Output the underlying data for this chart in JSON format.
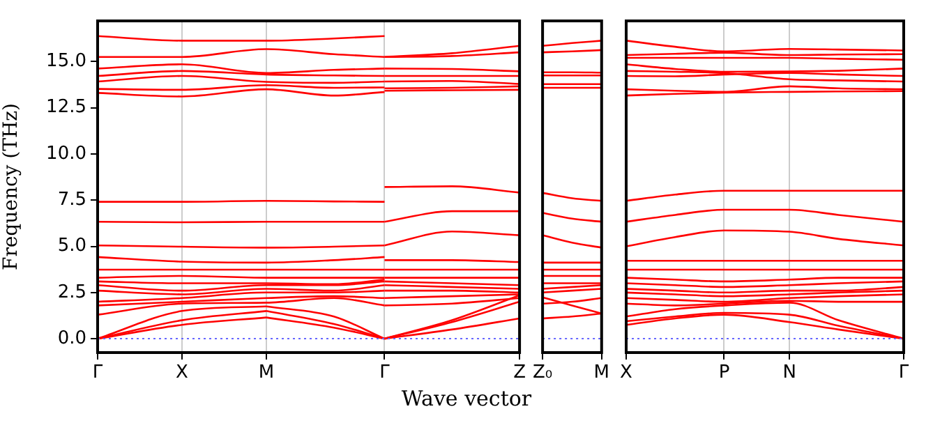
{
  "chart_data": [
    {
      "type": "line",
      "ylabel": "Frequency (THz)",
      "color": "#ff0000",
      "marker": "none",
      "line_style": "solid",
      "legend": false,
      "grid": "x",
      "categories": [
        "Γ",
        null,
        null,
        null,
        null,
        "X",
        null,
        null,
        null,
        null,
        "M",
        null,
        null,
        null,
        null,
        null,
        null,
        "Γ",
        null,
        null,
        null,
        null,
        null,
        null,
        null,
        "Z"
      ],
      "ylim": [
        -0.75,
        17.2
      ],
      "yticks": [
        {
          "value": 0,
          "label": "0.0"
        },
        {
          "value": 2.5,
          "label": "2.5"
        },
        {
          "value": 5,
          "label": "5.0"
        },
        {
          "value": 7.5,
          "label": "7.5"
        },
        {
          "value": 10,
          "label": "10.0"
        },
        {
          "value": 12.5,
          "label": "12.5"
        },
        {
          "value": 15,
          "label": "15.0"
        }
      ],
      "ref_lines": [
        {
          "axis": "y",
          "value": 0,
          "color": "#6666ff",
          "line_style": "dotted"
        }
      ],
      "series": [
        {
          "values": [
            16.38,
            null,
            null,
            null,
            null,
            16.13,
            null,
            null,
            null,
            null,
            16.13,
            null,
            null,
            null,
            16.25,
            null,
            null,
            16.38,
            null,
            null,
            null,
            null,
            null,
            null,
            null,
            null
          ]
        },
        {
          "values": [
            15.25,
            null,
            null,
            null,
            null,
            15.25,
            null,
            null,
            null,
            null,
            15.67,
            null,
            null,
            null,
            15.4,
            null,
            null,
            15.25,
            null,
            null,
            null,
            null,
            null,
            null,
            null,
            null
          ]
        },
        {
          "values": [
            14.62,
            null,
            null,
            null,
            null,
            14.85,
            null,
            null,
            null,
            null,
            14.38,
            null,
            null,
            null,
            14.55,
            null,
            null,
            14.62,
            null,
            null,
            null,
            null,
            null,
            null,
            null,
            null
          ]
        },
        {
          "values": [
            14.22,
            null,
            null,
            null,
            null,
            14.49,
            null,
            null,
            null,
            null,
            14.3,
            null,
            null,
            null,
            14.25,
            null,
            null,
            14.22,
            null,
            null,
            null,
            null,
            null,
            null,
            null,
            null
          ]
        },
        {
          "values": [
            13.92,
            null,
            null,
            null,
            null,
            14.22,
            null,
            null,
            null,
            null,
            13.9,
            null,
            null,
            null,
            13.85,
            null,
            null,
            13.92,
            null,
            null,
            null,
            null,
            null,
            null,
            null,
            null
          ]
        },
        {
          "values": [
            13.52,
            null,
            null,
            null,
            null,
            13.47,
            null,
            null,
            null,
            null,
            13.72,
            null,
            null,
            null,
            13.58,
            null,
            null,
            13.6,
            null,
            null,
            null,
            null,
            null,
            null,
            null,
            null
          ]
        },
        {
          "values": [
            13.3,
            null,
            null,
            null,
            null,
            13.11,
            null,
            null,
            null,
            null,
            13.5,
            null,
            null,
            null,
            13.16,
            null,
            null,
            13.35,
            null,
            null,
            null,
            null,
            null,
            null,
            null,
            null
          ]
        },
        {
          "values": [
            7.41,
            null,
            null,
            null,
            null,
            7.41,
            null,
            null,
            null,
            null,
            7.46,
            null,
            null,
            null,
            7.43,
            null,
            null,
            7.41,
            null,
            null,
            null,
            null,
            null,
            null,
            null,
            null
          ]
        },
        {
          "values": [
            6.33,
            null,
            null,
            null,
            null,
            6.3,
            null,
            null,
            null,
            null,
            6.33,
            null,
            null,
            null,
            6.33,
            null,
            null,
            6.33,
            null,
            null,
            null,
            null,
            null,
            null,
            null,
            null
          ]
        },
        {
          "values": [
            5.05,
            null,
            null,
            null,
            null,
            4.98,
            null,
            null,
            null,
            null,
            4.93,
            null,
            null,
            null,
            4.98,
            null,
            null,
            5.05,
            null,
            null,
            null,
            null,
            null,
            null,
            null,
            null
          ]
        },
        {
          "values": [
            4.42,
            null,
            null,
            null,
            null,
            4.17,
            null,
            null,
            null,
            null,
            4.12,
            null,
            null,
            null,
            4.25,
            null,
            null,
            4.42,
            null,
            null,
            null,
            null,
            null,
            null,
            null,
            null
          ]
        },
        {
          "values": [
            3.74,
            null,
            null,
            null,
            null,
            3.74,
            null,
            null,
            null,
            null,
            3.74,
            null,
            null,
            null,
            3.74,
            null,
            null,
            3.74,
            null,
            null,
            null,
            null,
            null,
            null,
            null,
            null
          ]
        },
        {
          "values": [
            3.3,
            null,
            null,
            null,
            null,
            3.4,
            null,
            null,
            null,
            null,
            3.3,
            null,
            null,
            null,
            3.3,
            null,
            null,
            3.3,
            null,
            null,
            null,
            null,
            null,
            null,
            null,
            null
          ]
        },
        {
          "values": [
            3.1,
            null,
            null,
            null,
            null,
            3.0,
            null,
            null,
            null,
            null,
            3.0,
            null,
            null,
            null,
            2.95,
            null,
            null,
            3.2,
            null,
            null,
            null,
            null,
            null,
            null,
            null,
            null
          ]
        },
        {
          "values": [
            2.9,
            null,
            null,
            null,
            null,
            2.6,
            null,
            null,
            null,
            null,
            2.9,
            null,
            null,
            null,
            2.9,
            null,
            null,
            3.1,
            null,
            null,
            null,
            null,
            null,
            null,
            null,
            null
          ]
        },
        {
          "values": [
            2.6,
            null,
            null,
            null,
            null,
            2.4,
            null,
            null,
            null,
            null,
            2.7,
            null,
            null,
            null,
            2.6,
            null,
            null,
            2.9,
            null,
            null,
            null,
            null,
            null,
            null,
            null,
            null
          ]
        },
        {
          "values": [
            2.0,
            null,
            null,
            null,
            null,
            2.2,
            null,
            null,
            null,
            null,
            2.5,
            null,
            null,
            null,
            2.5,
            null,
            null,
            2.6,
            null,
            null,
            null,
            null,
            null,
            null,
            null,
            null
          ]
        },
        {
          "values": [
            1.8,
            null,
            null,
            null,
            null,
            2.0,
            null,
            null,
            null,
            null,
            2.2,
            null,
            null,
            null,
            2.3,
            null,
            null,
            2.2,
            null,
            null,
            null,
            null,
            null,
            null,
            null,
            null
          ]
        },
        {
          "values": [
            1.3,
            null,
            null,
            null,
            null,
            1.9,
            null,
            null,
            null,
            null,
            1.95,
            null,
            null,
            null,
            2.2,
            null,
            null,
            1.8,
            null,
            null,
            null,
            null,
            null,
            null,
            null,
            null
          ]
        },
        {
          "values": [
            0,
            null,
            null,
            null,
            null,
            1.5,
            null,
            null,
            null,
            null,
            1.75,
            null,
            null,
            null,
            null,
            null,
            null,
            null,
            null,
            null,
            null,
            null,
            null,
            null,
            null,
            null
          ]
        },
        {
          "values": [
            null,
            null,
            null,
            null,
            null,
            null,
            null,
            null,
            null,
            null,
            1.75,
            null,
            null,
            null,
            1.2,
            null,
            null,
            0,
            null,
            null,
            null,
            null,
            null,
            null,
            null,
            null
          ]
        },
        {
          "values": [
            0,
            null,
            null,
            null,
            null,
            1.0,
            null,
            null,
            null,
            null,
            1.5,
            null,
            null,
            null,
            null,
            null,
            null,
            null,
            null,
            null,
            null,
            null,
            null,
            null,
            null,
            null
          ]
        },
        {
          "values": [
            null,
            null,
            null,
            null,
            null,
            null,
            null,
            null,
            null,
            null,
            1.5,
            null,
            null,
            null,
            0.8,
            null,
            null,
            0,
            null,
            null,
            null,
            null,
            null,
            null,
            null,
            null
          ]
        },
        {
          "values": [
            0,
            null,
            null,
            null,
            null,
            0.75,
            null,
            null,
            null,
            null,
            1.15,
            null,
            null,
            null,
            null,
            null,
            null,
            null,
            null,
            null,
            null,
            null,
            null,
            null,
            null,
            null
          ]
        },
        {
          "values": [
            null,
            null,
            null,
            null,
            null,
            null,
            null,
            null,
            null,
            null,
            1.15,
            null,
            null,
            null,
            0.6,
            null,
            null,
            0,
            null,
            null,
            null,
            null,
            null,
            null,
            null,
            null
          ]
        },
        {
          "values": [
            null,
            null,
            null,
            null,
            null,
            null,
            null,
            null,
            null,
            null,
            null,
            null,
            null,
            null,
            null,
            null,
            null,
            15.25,
            null,
            null,
            null,
            15.45,
            null,
            null,
            null,
            15.85
          ]
        },
        {
          "values": [
            null,
            null,
            null,
            null,
            null,
            null,
            null,
            null,
            null,
            null,
            null,
            null,
            null,
            null,
            null,
            null,
            null,
            15.25,
            null,
            null,
            null,
            15.3,
            null,
            null,
            null,
            15.5
          ]
        },
        {
          "values": [
            null,
            null,
            null,
            null,
            null,
            null,
            null,
            null,
            null,
            null,
            null,
            null,
            null,
            null,
            null,
            null,
            null,
            14.62,
            null,
            null,
            null,
            14.6,
            null,
            null,
            null,
            14.47
          ]
        },
        {
          "values": [
            null,
            null,
            null,
            null,
            null,
            null,
            null,
            null,
            null,
            null,
            null,
            null,
            null,
            null,
            null,
            null,
            null,
            14.22,
            null,
            null,
            null,
            14.22,
            null,
            null,
            null,
            14.22
          ]
        },
        {
          "values": [
            null,
            null,
            null,
            null,
            null,
            null,
            null,
            null,
            null,
            null,
            null,
            null,
            null,
            null,
            null,
            null,
            null,
            13.92,
            null,
            null,
            null,
            13.95,
            null,
            null,
            null,
            13.79
          ]
        },
        {
          "values": [
            null,
            null,
            null,
            null,
            null,
            null,
            null,
            null,
            null,
            null,
            null,
            null,
            null,
            null,
            null,
            null,
            null,
            13.55,
            null,
            null,
            null,
            13.58,
            null,
            null,
            null,
            13.66
          ]
        },
        {
          "values": [
            null,
            null,
            null,
            null,
            null,
            null,
            null,
            null,
            null,
            null,
            null,
            null,
            null,
            null,
            null,
            null,
            null,
            13.42,
            null,
            null,
            null,
            13.45,
            null,
            null,
            null,
            13.47
          ]
        },
        {
          "values": [
            null,
            null,
            null,
            null,
            null,
            null,
            null,
            null,
            null,
            null,
            null,
            null,
            null,
            null,
            null,
            null,
            null,
            8.21,
            null,
            null,
            null,
            8.25,
            null,
            null,
            null,
            7.91
          ]
        },
        {
          "values": [
            null,
            null,
            null,
            null,
            null,
            null,
            null,
            null,
            null,
            null,
            null,
            null,
            null,
            null,
            null,
            null,
            null,
            6.33,
            null,
            null,
            null,
            6.9,
            null,
            null,
            null,
            6.9
          ]
        },
        {
          "values": [
            null,
            null,
            null,
            null,
            null,
            null,
            null,
            null,
            null,
            null,
            null,
            null,
            null,
            null,
            null,
            null,
            null,
            5.05,
            null,
            null,
            null,
            5.8,
            null,
            null,
            null,
            5.6
          ]
        },
        {
          "values": [
            null,
            null,
            null,
            null,
            null,
            null,
            null,
            null,
            null,
            null,
            null,
            null,
            null,
            null,
            null,
            null,
            null,
            4.25,
            null,
            null,
            null,
            4.25,
            null,
            null,
            null,
            4.15
          ]
        },
        {
          "values": [
            null,
            null,
            null,
            null,
            null,
            null,
            null,
            null,
            null,
            null,
            null,
            null,
            null,
            null,
            null,
            null,
            null,
            3.74,
            null,
            null,
            null,
            3.74,
            null,
            null,
            null,
            3.74
          ]
        },
        {
          "values": [
            null,
            null,
            null,
            null,
            null,
            null,
            null,
            null,
            null,
            null,
            null,
            null,
            null,
            null,
            null,
            null,
            null,
            3.3,
            null,
            null,
            null,
            3.3,
            null,
            null,
            null,
            3.3
          ]
        },
        {
          "values": [
            null,
            null,
            null,
            null,
            null,
            null,
            null,
            null,
            null,
            null,
            null,
            null,
            null,
            null,
            null,
            null,
            null,
            3.1,
            null,
            null,
            null,
            3.0,
            null,
            null,
            null,
            2.9
          ]
        },
        {
          "values": [
            null,
            null,
            null,
            null,
            null,
            null,
            null,
            null,
            null,
            null,
            null,
            null,
            null,
            null,
            null,
            null,
            null,
            2.9,
            null,
            null,
            null,
            2.8,
            null,
            null,
            null,
            2.7
          ]
        },
        {
          "values": [
            null,
            null,
            null,
            null,
            null,
            null,
            null,
            null,
            null,
            null,
            null,
            null,
            null,
            null,
            null,
            null,
            null,
            2.6,
            null,
            null,
            null,
            2.6,
            null,
            null,
            null,
            2.5
          ]
        },
        {
          "values": [
            null,
            null,
            null,
            null,
            null,
            null,
            null,
            null,
            null,
            null,
            null,
            null,
            null,
            null,
            null,
            null,
            null,
            2.2,
            null,
            null,
            null,
            2.3,
            null,
            null,
            null,
            2.4
          ]
        },
        {
          "values": [
            null,
            null,
            null,
            null,
            null,
            null,
            null,
            null,
            null,
            null,
            null,
            null,
            null,
            null,
            null,
            null,
            null,
            1.8,
            null,
            null,
            null,
            1.9,
            null,
            null,
            null,
            2.2
          ]
        },
        {
          "values": [
            null,
            null,
            null,
            null,
            null,
            null,
            null,
            null,
            null,
            null,
            null,
            null,
            null,
            null,
            null,
            null,
            null,
            0,
            null,
            null,
            null,
            1.0,
            null,
            null,
            null,
            2.35
          ]
        },
        {
          "values": [
            null,
            null,
            null,
            null,
            null,
            null,
            null,
            null,
            null,
            null,
            null,
            null,
            null,
            null,
            null,
            null,
            null,
            0,
            null,
            null,
            null,
            0.9,
            null,
            null,
            null,
            2.0
          ]
        },
        {
          "values": [
            null,
            null,
            null,
            null,
            null,
            null,
            null,
            null,
            null,
            null,
            null,
            null,
            null,
            null,
            null,
            null,
            null,
            0,
            null,
            null,
            null,
            0.5,
            null,
            null,
            null,
            1.1
          ]
        }
      ]
    },
    {
      "type": "line",
      "xlabel": "Wave vector",
      "color": "#ff0000",
      "marker": "none",
      "line_style": "solid",
      "legend": false,
      "tick_labels": "x",
      "categories": [
        "Z₀",
        null,
        null,
        null,
        "M"
      ],
      "ylim": [
        -0.75,
        17.2
      ],
      "ref_lines": [
        {
          "axis": "y",
          "value": 0,
          "color": "#6666ff",
          "line_style": "dotted"
        }
      ],
      "series": [
        {
          "values": [
            15.85,
            null,
            16.0,
            null,
            16.13
          ]
        },
        {
          "values": [
            15.5,
            null,
            15.55,
            null,
            15.62
          ]
        },
        {
          "values": [
            14.42,
            null,
            14.42,
            null,
            14.4
          ]
        },
        {
          "values": [
            14.25,
            null,
            14.25,
            null,
            14.25
          ]
        },
        {
          "values": [
            13.78,
            null,
            13.78,
            null,
            13.78
          ]
        },
        {
          "values": [
            13.58,
            null,
            13.58,
            null,
            13.58
          ]
        },
        {
          "values": [
            7.89,
            null,
            7.6,
            null,
            7.46
          ]
        },
        {
          "values": [
            6.81,
            null,
            6.5,
            null,
            6.33
          ]
        },
        {
          "values": [
            5.6,
            null,
            5.2,
            null,
            4.93
          ]
        },
        {
          "values": [
            4.12,
            null,
            4.12,
            null,
            4.12
          ]
        },
        {
          "values": [
            3.74,
            null,
            3.74,
            null,
            3.74
          ]
        },
        {
          "values": [
            3.4,
            null,
            3.4,
            null,
            3.4
          ]
        },
        {
          "values": [
            3.0,
            null,
            3.0,
            null,
            3.0
          ]
        },
        {
          "values": [
            2.7,
            null,
            2.8,
            null,
            2.9
          ]
        },
        {
          "values": [
            2.5,
            null,
            2.6,
            null,
            2.7
          ]
        },
        {
          "values": [
            2.24,
            null,
            1.8,
            null,
            1.36
          ]
        },
        {
          "values": [
            1.1,
            null,
            1.2,
            null,
            1.36
          ]
        },
        {
          "values": [
            1.9,
            null,
            2.0,
            null,
            2.2
          ]
        }
      ]
    },
    {
      "type": "line",
      "color": "#ff0000",
      "marker": "none",
      "line_style": "solid",
      "legend": false,
      "grid": "x",
      "tick_labels": "x",
      "categories": [
        "X",
        null,
        null,
        null,
        null,
        null,
        "P",
        null,
        null,
        null,
        "N",
        null,
        null,
        null,
        null,
        null,
        null,
        "Γ"
      ],
      "ylim": [
        -0.75,
        17.2
      ],
      "ref_lines": [
        {
          "axis": "y",
          "value": 0,
          "color": "#6666ff",
          "line_style": "dotted"
        }
      ],
      "series": [
        {
          "values": [
            16.13,
            null,
            null,
            15.8,
            null,
            null,
            15.55,
            null,
            null,
            null,
            15.68,
            null,
            null,
            15.65,
            null,
            null,
            null,
            15.6
          ]
        },
        {
          "values": [
            15.35,
            null,
            null,
            15.42,
            null,
            null,
            15.48,
            null,
            null,
            null,
            15.35,
            null,
            null,
            15.38,
            null,
            null,
            null,
            15.4
          ]
        },
        {
          "values": [
            15.2,
            null,
            null,
            15.2,
            null,
            null,
            15.2,
            null,
            null,
            null,
            15.2,
            null,
            null,
            15.15,
            null,
            null,
            null,
            15.1
          ]
        },
        {
          "values": [
            14.85,
            null,
            null,
            14.6,
            null,
            null,
            14.45,
            null,
            null,
            null,
            14.46,
            null,
            null,
            14.5,
            null,
            null,
            null,
            14.62
          ]
        },
        {
          "values": [
            14.49,
            null,
            null,
            14.45,
            null,
            null,
            14.38,
            null,
            null,
            null,
            14.04,
            null,
            null,
            13.98,
            null,
            null,
            null,
            13.92
          ]
        },
        {
          "values": [
            14.22,
            null,
            null,
            14.2,
            null,
            null,
            14.3,
            null,
            null,
            null,
            14.38,
            null,
            null,
            14.3,
            null,
            null,
            null,
            14.22
          ]
        },
        {
          "values": [
            13.5,
            null,
            null,
            13.42,
            null,
            null,
            13.36,
            null,
            null,
            null,
            13.66,
            null,
            null,
            13.55,
            null,
            null,
            null,
            13.5
          ]
        },
        {
          "values": [
            13.16,
            null,
            null,
            13.25,
            null,
            null,
            13.32,
            null,
            null,
            null,
            13.36,
            null,
            null,
            13.38,
            null,
            null,
            null,
            13.4
          ]
        },
        {
          "values": [
            7.46,
            null,
            null,
            7.8,
            null,
            null,
            8.01,
            null,
            null,
            null,
            8.01,
            null,
            null,
            8.01,
            null,
            null,
            null,
            8.01
          ]
        },
        {
          "values": [
            6.33,
            null,
            null,
            6.7,
            null,
            null,
            6.98,
            null,
            null,
            null,
            6.98,
            null,
            null,
            6.7,
            null,
            null,
            null,
            6.33
          ]
        },
        {
          "values": [
            5.0,
            null,
            null,
            5.5,
            null,
            null,
            5.86,
            null,
            null,
            null,
            5.79,
            null,
            null,
            5.4,
            null,
            null,
            null,
            5.05
          ]
        },
        {
          "values": [
            4.22,
            null,
            null,
            4.22,
            null,
            null,
            4.22,
            null,
            null,
            null,
            4.22,
            null,
            null,
            4.22,
            null,
            null,
            null,
            4.22
          ]
        },
        {
          "values": [
            3.74,
            null,
            null,
            3.74,
            null,
            null,
            3.74,
            null,
            null,
            null,
            3.74,
            null,
            null,
            3.74,
            null,
            null,
            null,
            3.74
          ]
        },
        {
          "values": [
            3.3,
            null,
            null,
            3.2,
            null,
            null,
            3.1,
            null,
            null,
            null,
            3.2,
            null,
            null,
            3.3,
            null,
            null,
            null,
            3.3
          ]
        },
        {
          "values": [
            3.0,
            null,
            null,
            2.9,
            null,
            null,
            2.8,
            null,
            null,
            null,
            2.9,
            null,
            null,
            3.0,
            null,
            null,
            null,
            3.1
          ]
        },
        {
          "values": [
            2.7,
            null,
            null,
            2.6,
            null,
            null,
            2.5,
            null,
            null,
            null,
            2.6,
            null,
            null,
            2.6,
            null,
            null,
            null,
            2.8
          ]
        },
        {
          "values": [
            2.5,
            null,
            null,
            2.4,
            null,
            null,
            2.3,
            null,
            null,
            null,
            2.4,
            null,
            null,
            2.5,
            null,
            null,
            null,
            2.6
          ]
        },
        {
          "values": [
            2.2,
            null,
            null,
            2.1,
            null,
            null,
            2.0,
            null,
            null,
            null,
            2.2,
            null,
            null,
            2.3,
            null,
            null,
            null,
            2.4
          ]
        },
        {
          "values": [
            1.9,
            null,
            null,
            1.8,
            null,
            null,
            1.9,
            null,
            null,
            null,
            2.05,
            null,
            null,
            2.0,
            null,
            null,
            null,
            2.0
          ]
        },
        {
          "values": [
            1.2,
            null,
            null,
            1.6,
            null,
            null,
            1.8,
            null,
            null,
            null,
            1.95,
            null,
            null,
            1.0,
            null,
            null,
            null,
            0
          ]
        },
        {
          "values": [
            0.95,
            null,
            null,
            1.2,
            null,
            null,
            1.4,
            null,
            null,
            null,
            1.3,
            null,
            null,
            0.7,
            null,
            null,
            null,
            0
          ]
        },
        {
          "values": [
            0.75,
            null,
            null,
            1.1,
            null,
            null,
            1.3,
            null,
            null,
            null,
            0.9,
            null,
            null,
            0.5,
            null,
            null,
            null,
            0
          ]
        }
      ]
    }
  ]
}
